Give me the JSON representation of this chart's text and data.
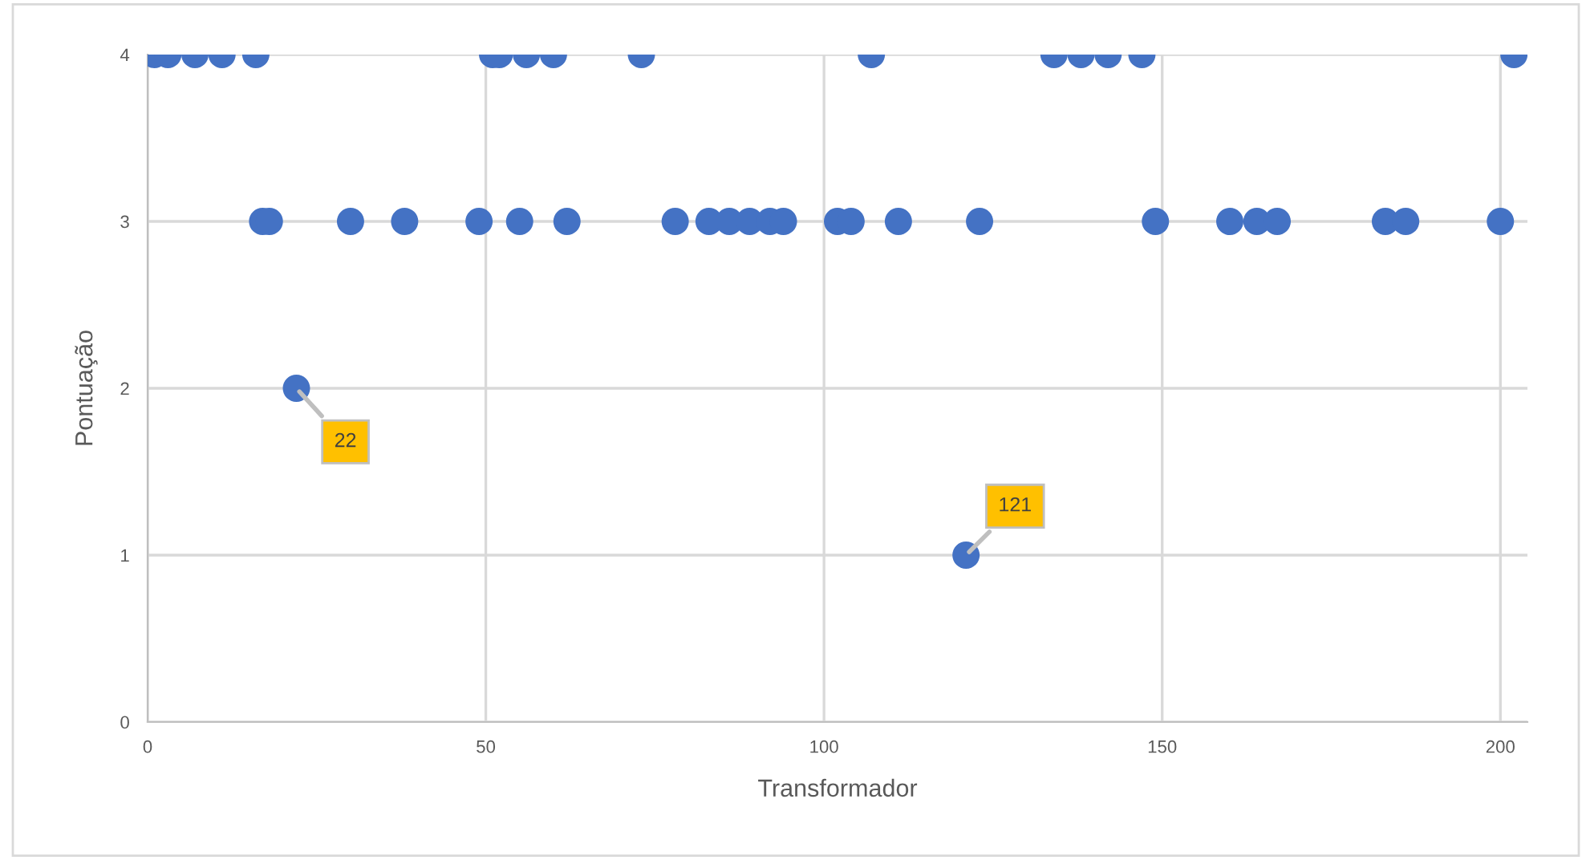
{
  "chart_data": {
    "type": "scatter",
    "xlabel": "Transformador",
    "ylabel": "Pontuação",
    "series": [
      {
        "color": "#4472c4",
        "x": [
          1,
          3,
          7,
          11,
          16,
          51,
          52,
          56,
          60,
          73,
          107,
          134,
          138,
          142,
          147,
          202,
          17,
          18,
          30,
          38,
          49,
          55,
          62,
          78,
          83,
          86,
          89,
          92,
          94,
          102,
          104,
          111,
          123,
          149,
          160,
          164,
          167,
          183,
          186,
          200,
          22,
          121
        ],
        "values": [
          4,
          4,
          4,
          4,
          4,
          4,
          4,
          4,
          4,
          4,
          4,
          4,
          4,
          4,
          4,
          4,
          3,
          3,
          3,
          3,
          3,
          3,
          3,
          3,
          3,
          3,
          3,
          3,
          3,
          3,
          3,
          3,
          3,
          3,
          3,
          3,
          3,
          3,
          3,
          3,
          2,
          1
        ]
      }
    ],
    "annotations": [
      {
        "text": "22",
        "x": 22,
        "y": 2
      },
      {
        "text": "121",
        "x": 121,
        "y": 1
      }
    ],
    "xlim": [
      0,
      204
    ],
    "xticks": [
      0,
      50,
      100,
      150,
      200
    ],
    "ylim": [
      0,
      4
    ],
    "yticks": [
      0,
      1,
      2,
      3,
      4
    ],
    "grid": true,
    "marker": "circle"
  }
}
